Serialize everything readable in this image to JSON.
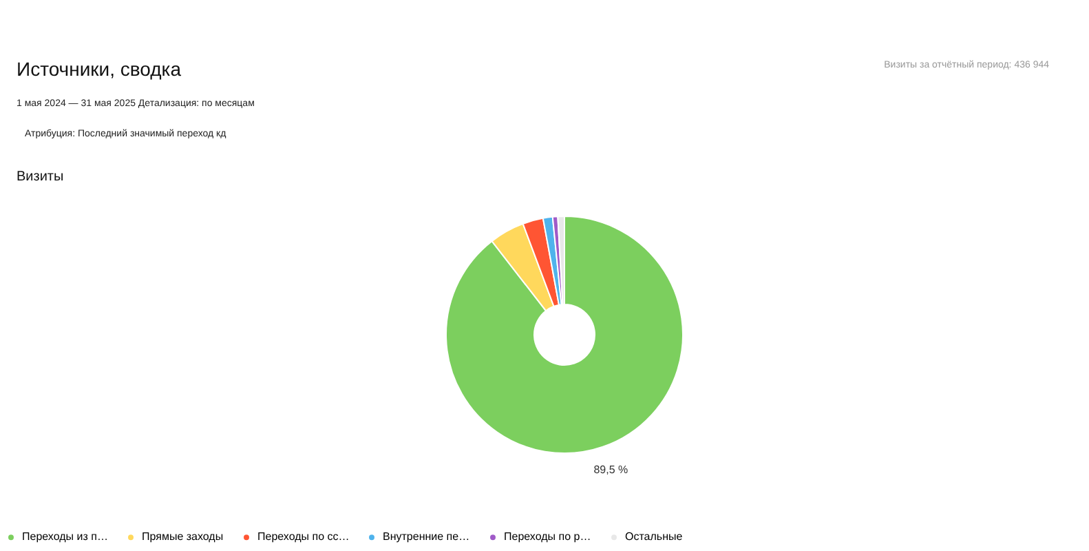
{
  "chart_data": {
    "type": "donut",
    "title": "Источники, сводка",
    "subtitle": "1 мая 2024 — 31 мая 2025   Детализация: по месяцам",
    "annotations": [
      "Атрибуция: Последний значимый переход кд",
      "Визиты",
      "Визиты за отчётный период: 436 944"
    ],
    "categories": [
      "Переходы из п…",
      "Прямые заходы",
      "Переходы по сс…",
      "Внутренние пе…",
      "Переходы по р…",
      "Остальные"
    ],
    "values": [
      89.5,
      4.8,
      2.8,
      1.3,
      0.7,
      0.9
    ],
    "value_labels": [
      "89,5 %",
      null,
      null,
      null,
      null,
      null
    ],
    "colors": [
      "#7ccf5e",
      "#ffd85c",
      "#ff5533",
      "#4fb3ec",
      "#a05ac8",
      "#e8e8e8"
    ],
    "legend": "bottom"
  }
}
